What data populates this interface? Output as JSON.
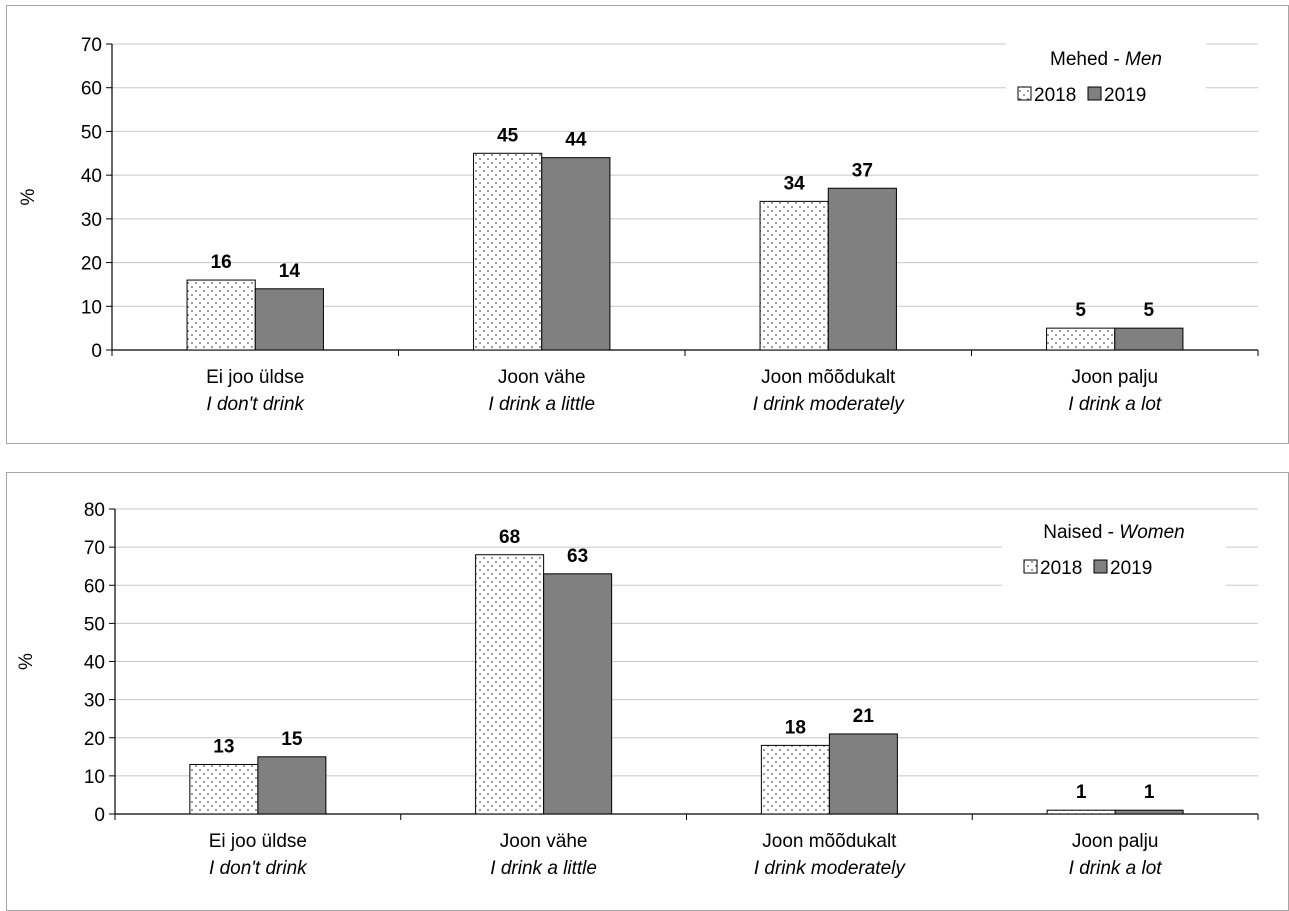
{
  "chart_data": [
    {
      "type": "bar",
      "legend_title": "Mehed - ",
      "legend_title_it": "Men",
      "ylabel": "%",
      "ylim": [
        0,
        70
      ],
      "yticks": [
        0,
        10,
        20,
        30,
        40,
        50,
        60,
        70
      ],
      "grid": true,
      "legend_position": "top-right",
      "categories": [
        {
          "et": "Ei joo üldse",
          "en": "I don't drink"
        },
        {
          "et": "Joon vähe",
          "en": "I drink a little"
        },
        {
          "et": "Joon mõõdukalt",
          "en": "I drink moderately"
        },
        {
          "et": "Joon palju",
          "en": "I drink a lot"
        }
      ],
      "series": [
        {
          "name": "2018",
          "values": [
            16,
            45,
            34,
            5
          ],
          "pattern": "dotted",
          "color": "#ffffff"
        },
        {
          "name": "2019",
          "values": [
            14,
            44,
            37,
            5
          ],
          "pattern": "solid",
          "color": "#808080"
        }
      ]
    },
    {
      "type": "bar",
      "legend_title": "Naised - ",
      "legend_title_it": "Women",
      "ylabel": "%",
      "ylim": [
        0,
        80
      ],
      "yticks": [
        0,
        10,
        20,
        30,
        40,
        50,
        60,
        70,
        80
      ],
      "grid": true,
      "legend_position": "top-right",
      "categories": [
        {
          "et": "Ei joo üldse",
          "en": "I don't drink"
        },
        {
          "et": "Joon vähe",
          "en": "I drink a little"
        },
        {
          "et": "Joon mõõdukalt",
          "en": "I drink moderately"
        },
        {
          "et": "Joon palju",
          "en": "I drink a lot"
        }
      ],
      "series": [
        {
          "name": "2018",
          "values": [
            13,
            68,
            18,
            1
          ],
          "pattern": "dotted",
          "color": "#ffffff"
        },
        {
          "name": "2019",
          "values": [
            15,
            63,
            21,
            1
          ],
          "pattern": "solid",
          "color": "#808080"
        }
      ]
    }
  ]
}
